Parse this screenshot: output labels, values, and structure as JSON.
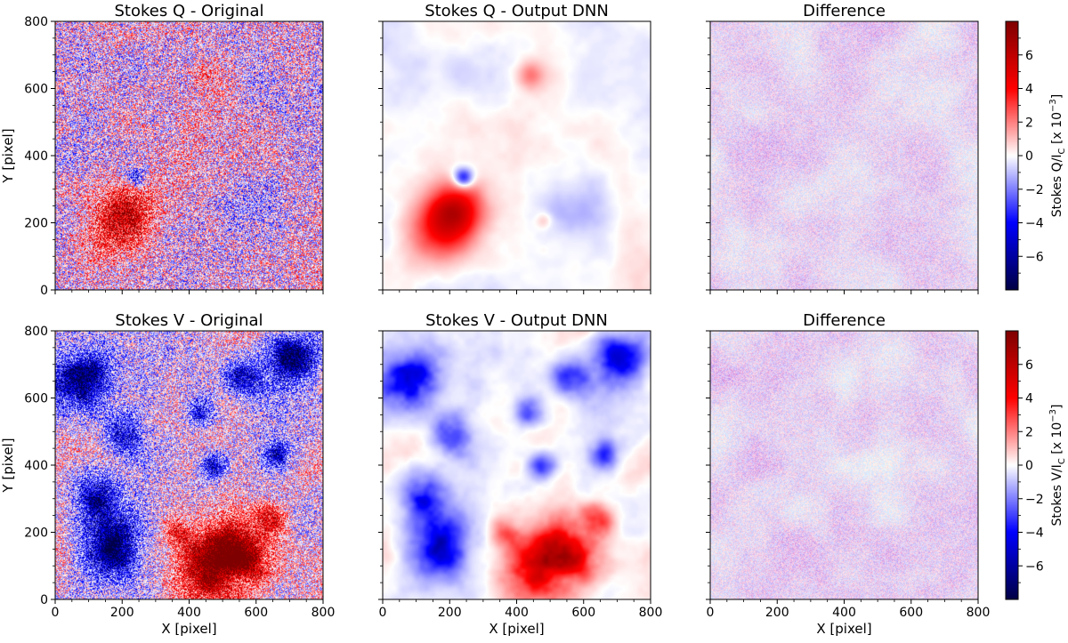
{
  "chart_data": [
    {
      "type": "heatmap",
      "title": "Stokes Q - Original",
      "xlabel": "",
      "ylabel": "Y [pixel]",
      "xlim": [
        0,
        800
      ],
      "ylim": [
        0,
        800
      ],
      "x_ticks": [
        0,
        200,
        400,
        600,
        800
      ],
      "y_ticks": [
        0,
        200,
        400,
        600,
        800
      ],
      "show_x_tick_labels": false,
      "show_y_tick_labels": true,
      "pattern": "noise_q",
      "colorscale": "seismic"
    },
    {
      "type": "heatmap",
      "title": "Stokes Q - Output DNN",
      "xlabel": "",
      "ylabel": "",
      "xlim": [
        0,
        800
      ],
      "ylim": [
        0,
        800
      ],
      "x_ticks": [
        0,
        200,
        400,
        600,
        800
      ],
      "y_ticks": [
        0,
        200,
        400,
        600,
        800
      ],
      "show_x_tick_labels": false,
      "show_y_tick_labels": false,
      "pattern": "smooth_q",
      "colorscale": "seismic"
    },
    {
      "type": "heatmap",
      "title": "Difference",
      "xlabel": "",
      "ylabel": "",
      "xlim": [
        0,
        800
      ],
      "ylim": [
        0,
        800
      ],
      "x_ticks": [
        0,
        200,
        400,
        600,
        800
      ],
      "y_ticks": [
        0,
        200,
        400,
        600,
        800
      ],
      "show_x_tick_labels": false,
      "show_y_tick_labels": false,
      "pattern": "diff_q",
      "colorscale": "seismic",
      "colorbar": {
        "label": "Stokes Q/I",
        "label_sub": "C",
        "label_unit": " [x 10",
        "label_exp": "−3",
        "label_close": "]",
        "range": [
          -8,
          8
        ],
        "ticks": [
          6,
          4,
          2,
          0,
          -2,
          -4,
          -6
        ],
        "tick_labels": [
          "6",
          "4",
          "2",
          "0",
          "−2",
          "−4",
          "−6"
        ]
      }
    },
    {
      "type": "heatmap",
      "title": "Stokes V - Original",
      "xlabel": "X [pixel]",
      "ylabel": "Y [pixel]",
      "xlim": [
        0,
        800
      ],
      "ylim": [
        0,
        800
      ],
      "x_ticks": [
        0,
        200,
        400,
        600,
        800
      ],
      "y_ticks": [
        0,
        200,
        400,
        600,
        800
      ],
      "show_x_tick_labels": true,
      "show_y_tick_labels": true,
      "pattern": "noise_v",
      "colorscale": "seismic"
    },
    {
      "type": "heatmap",
      "title": "Stokes V - Output DNN",
      "xlabel": "X [pixel]",
      "ylabel": "",
      "xlim": [
        0,
        800
      ],
      "ylim": [
        0,
        800
      ],
      "x_ticks": [
        0,
        200,
        400,
        600,
        800
      ],
      "y_ticks": [
        0,
        200,
        400,
        600,
        800
      ],
      "show_x_tick_labels": true,
      "show_y_tick_labels": false,
      "pattern": "smooth_v",
      "colorscale": "seismic"
    },
    {
      "type": "heatmap",
      "title": "Difference",
      "xlabel": "X [pixel]",
      "ylabel": "",
      "xlim": [
        0,
        800
      ],
      "ylim": [
        0,
        800
      ],
      "x_ticks": [
        0,
        200,
        400,
        600,
        800
      ],
      "y_ticks": [
        0,
        200,
        400,
        600,
        800
      ],
      "show_x_tick_labels": true,
      "show_y_tick_labels": false,
      "pattern": "diff_v",
      "colorscale": "seismic",
      "colorbar": {
        "label": "Stokes V/I",
        "label_sub": "C",
        "label_unit": " [x 10",
        "label_exp": "−3",
        "label_close": "]",
        "range": [
          -8,
          8
        ],
        "ticks": [
          6,
          4,
          2,
          0,
          -2,
          -4,
          -6
        ],
        "tick_labels": [
          "6",
          "4",
          "2",
          "0",
          "−2",
          "−4",
          "−6"
        ]
      }
    }
  ]
}
